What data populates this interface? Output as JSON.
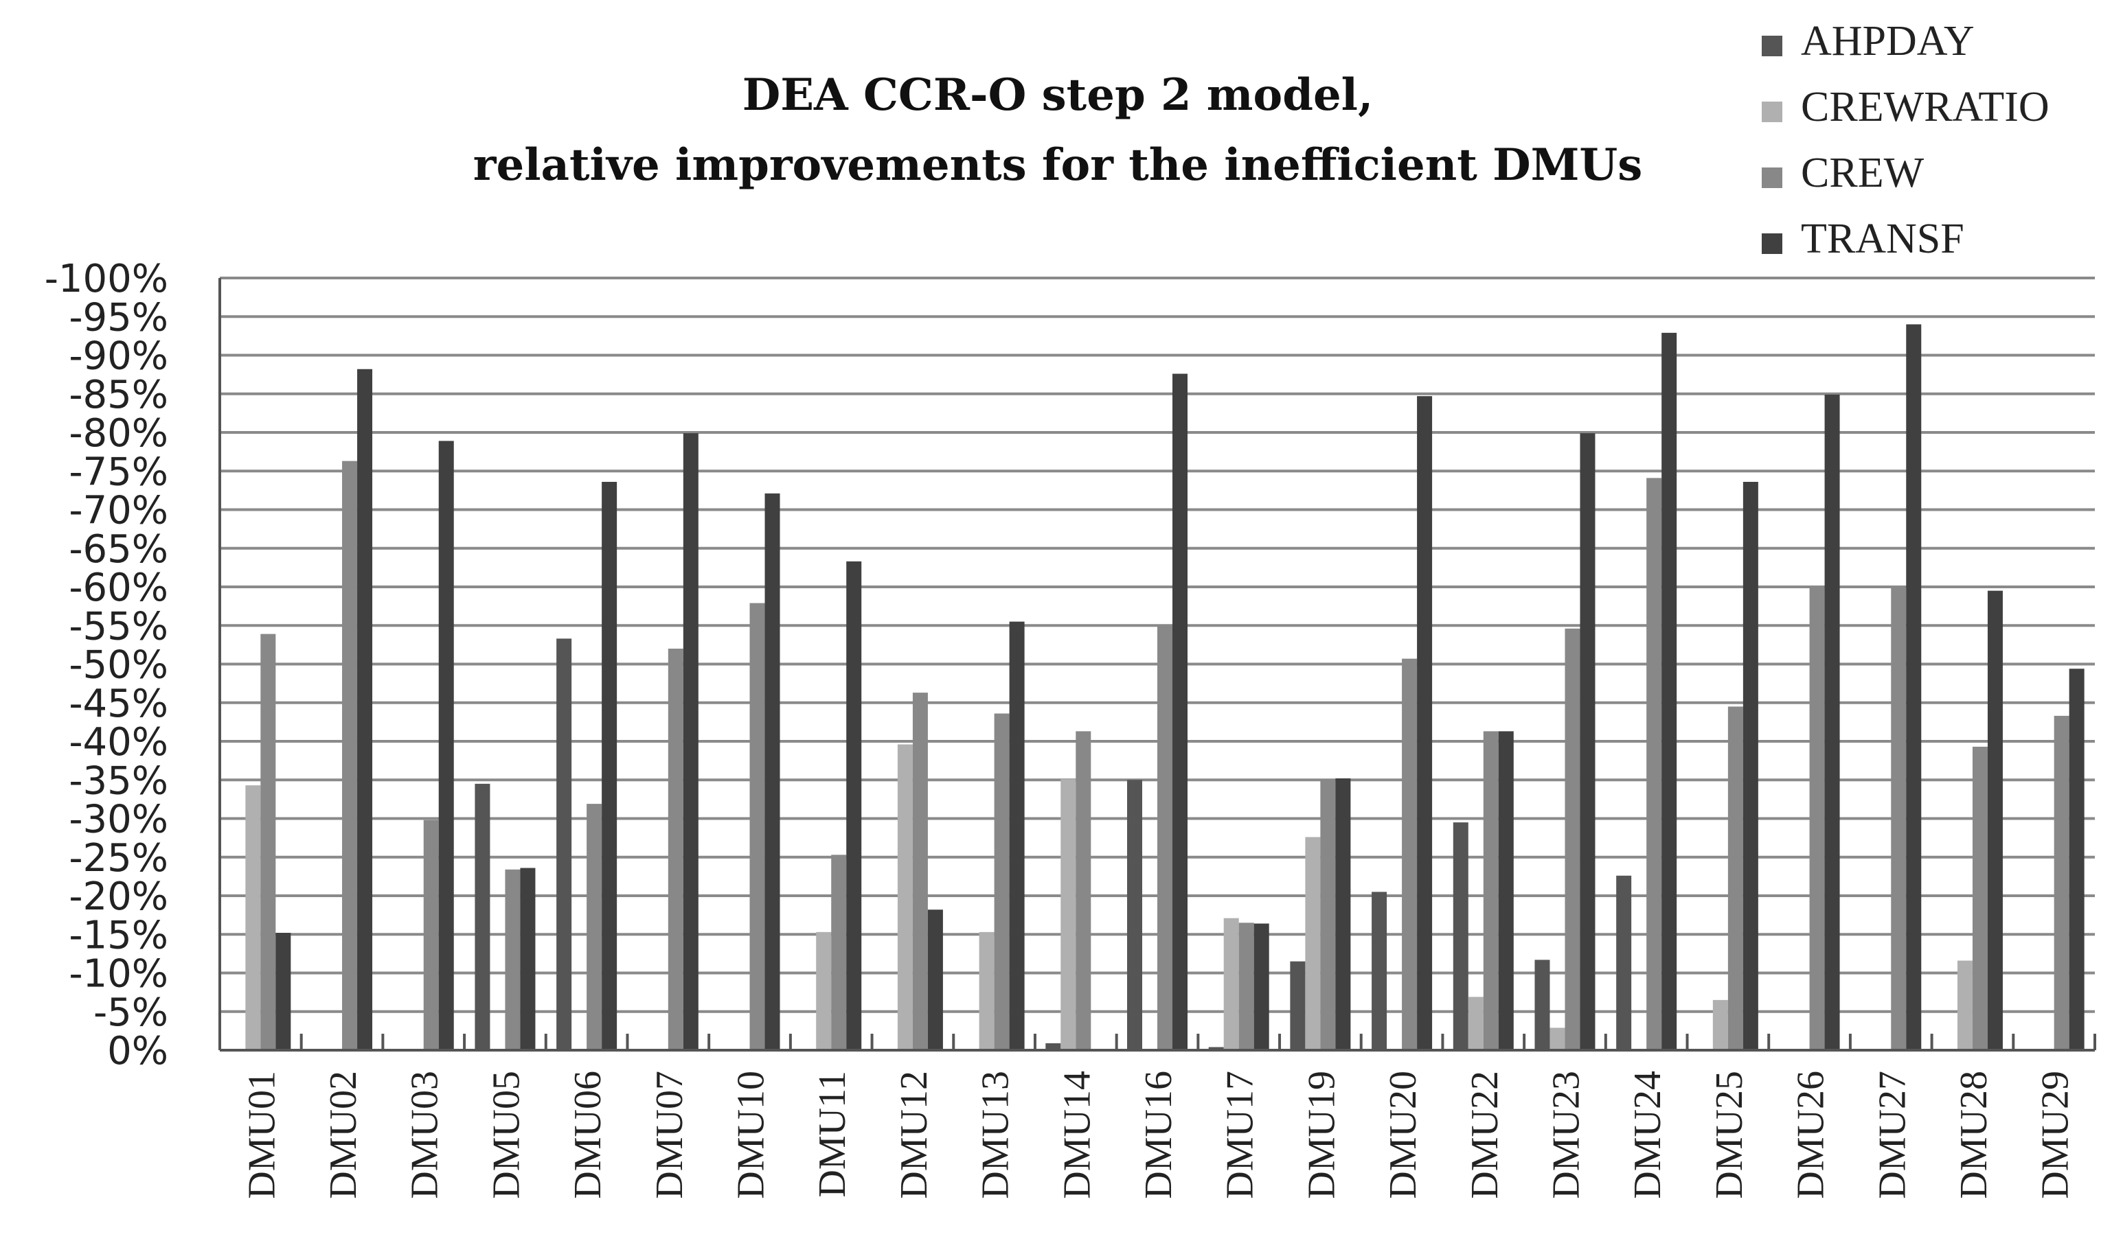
{
  "chart_data": {
    "type": "bar",
    "title": [
      "DEA CCR-O step 2 model,",
      "relative improvements for the inefficient DMUs"
    ],
    "xlabel": "",
    "ylabel": "",
    "ylim": [
      0,
      -100
    ],
    "y_ticks": [
      "-100%",
      "-95%",
      "-90%",
      "-85%",
      "-80%",
      "-75%",
      "-70%",
      "-65%",
      "-60%",
      "-55%",
      "-50%",
      "-45%",
      "-40%",
      "-35%",
      "-30%",
      "-25%",
      "-20%",
      "-15%",
      "-10%",
      "-5%",
      "0%"
    ],
    "y_tick_values": [
      -100,
      -95,
      -90,
      -85,
      -80,
      -75,
      -70,
      -65,
      -60,
      -55,
      -50,
      -45,
      -40,
      -35,
      -30,
      -25,
      -20,
      -15,
      -10,
      -5,
      0
    ],
    "grid": true,
    "legend_position": "top-right",
    "categories": [
      "DMU01",
      "DMU02",
      "DMU03",
      "DMU05",
      "DMU06",
      "DMU07",
      "DMU10",
      "DMU11",
      "DMU12",
      "DMU13",
      "DMU14",
      "DMU16",
      "DMU17",
      "DMU19",
      "DMU20",
      "DMU22",
      "DMU23",
      "DMU24",
      "DMU25",
      "DMU26",
      "DMU27",
      "DMU28",
      "DMU29"
    ],
    "series": [
      {
        "name": "AHPDAY",
        "color": "#555555",
        "values": [
          0,
          0,
          0,
          -34.5,
          -53.3,
          0,
          0,
          0,
          0,
          0,
          -0.9,
          -35,
          -0.4,
          -11.5,
          -20.5,
          -29.5,
          -11.7,
          -22.6,
          0,
          0,
          0,
          0,
          0
        ]
      },
      {
        "name": "CREWRATIO",
        "color": "#b0b0b0",
        "values": [
          -34.3,
          0,
          0,
          0,
          0,
          0,
          0,
          -15.3,
          -39.6,
          -15.3,
          -35.1,
          0,
          -17.1,
          -27.6,
          0,
          -6.9,
          -2.9,
          0,
          -6.5,
          0,
          0,
          -11.6,
          0
        ]
      },
      {
        "name": "CREW",
        "color": "#888888",
        "values": [
          -53.9,
          -76.3,
          -29.8,
          -23.4,
          -31.9,
          -52,
          -57.9,
          -25.3,
          -46.3,
          -43.6,
          -41.3,
          -55,
          -16.5,
          -35.1,
          -50.7,
          -41.3,
          -54.6,
          -74.1,
          -44.5,
          -60,
          -60,
          -39.3,
          -43.3
        ]
      },
      {
        "name": "TRANSF",
        "color": "#404040",
        "values": [
          -15.2,
          -88.2,
          -78.9,
          -23.6,
          -73.6,
          -79.9,
          -72.1,
          -63.3,
          -18.2,
          -55.5,
          0,
          -87.6,
          -16.4,
          -35.2,
          -84.7,
          -41.3,
          -79.9,
          -92.9,
          -73.6,
          -84.9,
          -94,
          -59.5,
          -49.4
        ]
      }
    ]
  }
}
